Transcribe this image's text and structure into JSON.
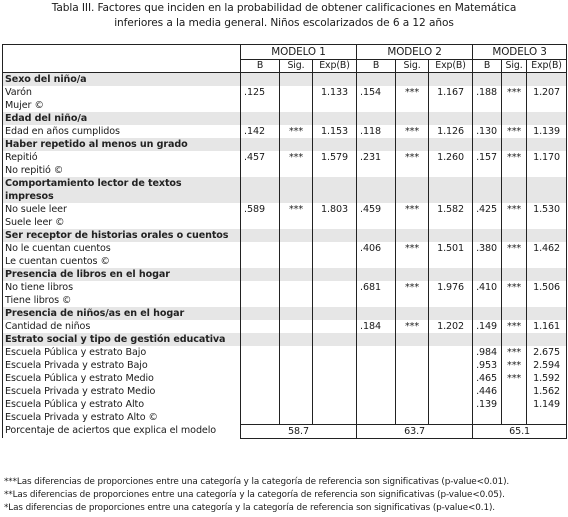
{
  "caption": {
    "line1": "Tabla III. Factores que inciden en la probabilidad de obtener calificaciones en Matemática",
    "line2": "inferiores a la media general. Niños escolarizados de 6 a 12 años"
  },
  "models": [
    "MODELO 1",
    "MODELO 2",
    "MODELO 3"
  ],
  "subheaders": [
    "B",
    "Sig.",
    "Exp(B)"
  ],
  "rows": [
    {
      "type": "sec",
      "label": "Sexo del niño/a"
    },
    {
      "type": "data",
      "label": "Varón",
      "cells": [
        ".125",
        "",
        "1.133",
        ".154",
        "***",
        "1.167",
        ".188",
        "***",
        "1.207"
      ]
    },
    {
      "type": "data",
      "label": "Mujer ©",
      "cells": [
        "",
        "",
        "",
        "",
        "",
        "",
        "",
        "",
        ""
      ]
    },
    {
      "type": "sec",
      "label": "Edad del niño/a"
    },
    {
      "type": "data",
      "label": "Edad en años cumplidos",
      "cells": [
        ".142",
        "***",
        "1.153",
        ".118",
        "***",
        "1.126",
        ".130",
        "***",
        "1.139"
      ]
    },
    {
      "type": "sec",
      "label": "Haber repetido al menos un grado"
    },
    {
      "type": "data",
      "label": "Repitió",
      "cells": [
        ".457",
        "***",
        "1.579",
        ".231",
        "***",
        "1.260",
        ".157",
        "***",
        "1.170"
      ]
    },
    {
      "type": "data",
      "label": "No repitió ©",
      "cells": [
        "",
        "",
        "",
        "",
        "",
        "",
        "",
        "",
        ""
      ]
    },
    {
      "type": "sec",
      "label": "Comportamiento lector de textos"
    },
    {
      "type": "sec",
      "label": "impresos"
    },
    {
      "type": "data",
      "label": "No suele leer",
      "cells": [
        ".589",
        "***",
        "1.803",
        ".459",
        "***",
        "1.582",
        ".425",
        "***",
        "1.530"
      ]
    },
    {
      "type": "data",
      "label": "Suele leer ©",
      "cells": [
        "",
        "",
        "",
        "",
        "",
        "",
        "",
        "",
        ""
      ]
    },
    {
      "type": "sec",
      "label": "Ser receptor de historias orales o cuentos"
    },
    {
      "type": "data",
      "label": "No le cuentan cuentos",
      "cells": [
        "",
        "",
        "",
        ".406",
        "***",
        "1.501",
        ".380",
        "***",
        "1.462"
      ]
    },
    {
      "type": "data",
      "label": "Le cuentan cuentos ©",
      "cells": [
        "",
        "",
        "",
        "",
        "",
        "",
        "",
        "",
        ""
      ]
    },
    {
      "type": "sec",
      "label": "Presencia de libros en el hogar"
    },
    {
      "type": "data",
      "label": "No tiene libros",
      "cells": [
        "",
        "",
        "",
        ".681",
        "***",
        "1.976",
        ".410",
        "***",
        "1.506"
      ]
    },
    {
      "type": "data",
      "label": "Tiene libros ©",
      "cells": [
        "",
        "",
        "",
        "",
        "",
        "",
        "",
        "",
        ""
      ]
    },
    {
      "type": "sec",
      "label": "Presencia de niños/as en el hogar"
    },
    {
      "type": "data",
      "label": "Cantidad de niños",
      "cells": [
        "",
        "",
        "",
        ".184",
        "***",
        "1.202",
        ".149",
        "***",
        "1.161"
      ]
    },
    {
      "type": "sec",
      "label": "Estrato social y tipo de gestión educativa"
    },
    {
      "type": "data",
      "label": "Escuela Pública y estrato Bajo",
      "cells": [
        "",
        "",
        "",
        "",
        "",
        "",
        ".984",
        "***",
        "2.675"
      ]
    },
    {
      "type": "data",
      "label": "Escuela Privada y estrato Bajo",
      "cells": [
        "",
        "",
        "",
        "",
        "",
        "",
        ".953",
        "***",
        "2.594"
      ]
    },
    {
      "type": "data",
      "label": "Escuela Pública y estrato Medio",
      "cells": [
        "",
        "",
        "",
        "",
        "",
        "",
        ".465",
        "***",
        "1.592"
      ]
    },
    {
      "type": "data",
      "label": "Escuela Privada y estrato Medio",
      "cells": [
        "",
        "",
        "",
        "",
        "",
        "",
        ".446",
        "",
        "1.562"
      ]
    },
    {
      "type": "data",
      "label": "Escuela Pública y estrato Alto",
      "cells": [
        "",
        "",
        "",
        "",
        "",
        "",
        ".139",
        "",
        "1.149"
      ]
    },
    {
      "type": "data",
      "label": "Escuela Privada y estrato Alto ©",
      "cells": [
        "",
        "",
        "",
        "",
        "",
        "",
        "",
        "",
        ""
      ]
    }
  ],
  "percent_row": {
    "label": "Porcentaje de aciertos que explica el modelo",
    "values": [
      "58.7",
      "63.7",
      "65.1"
    ]
  },
  "notes": [
    "***Las diferencias de proporciones entre una categoría y la categoría de referencia son significativas (p-value<0.01).",
    "**Las diferencias de proporciones entre una categoría y la categoría de referencia son significativas (p-value<0.05).",
    "*Las diferencias de proporciones entre una categoría y la categoría de referencia son significativas (p-value<0.1)."
  ]
}
